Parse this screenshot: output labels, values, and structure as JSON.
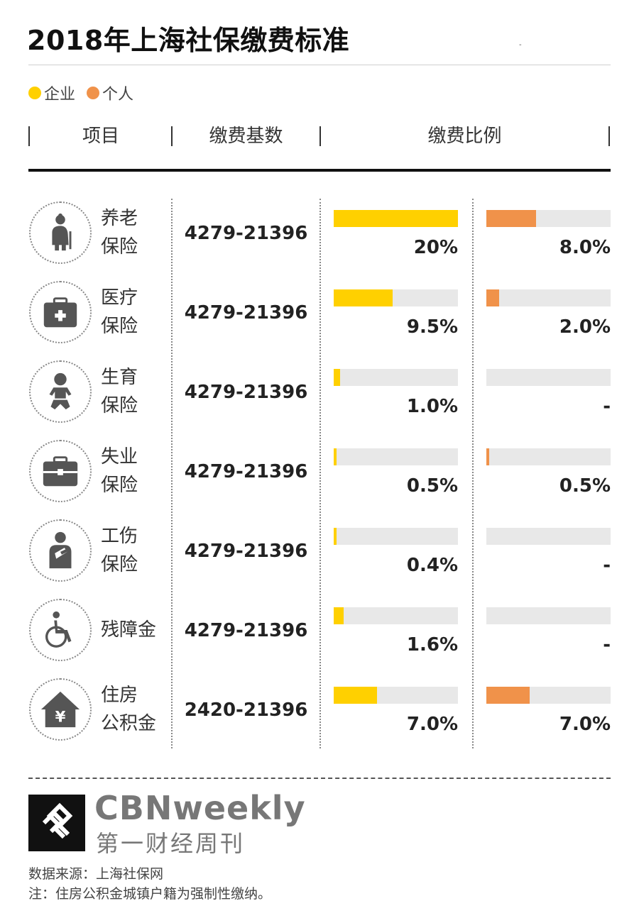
{
  "title": "2018年上海社保缴费标准",
  "top_mark": "-",
  "legend": [
    {
      "label": "企业",
      "color": "#FFD000"
    },
    {
      "label": "个人",
      "color": "#F0924A"
    }
  ],
  "headers": {
    "item": "项目",
    "base": "缴费基数",
    "ratio": "缴费比例"
  },
  "chart_data": {
    "type": "bar",
    "title": "2018年上海社保缴费标准",
    "categories": [
      "养老保险",
      "医疗保险",
      "生育保险",
      "失业保险",
      "工伤保险",
      "残障金",
      "住房公积金"
    ],
    "series": [
      {
        "name": "企业",
        "color": "#FFD000",
        "values": [
          20,
          9.5,
          1.0,
          0.5,
          0.4,
          1.6,
          7.0
        ]
      },
      {
        "name": "个人",
        "color": "#F0924A",
        "values": [
          8.0,
          2.0,
          null,
          0.5,
          null,
          null,
          7.0
        ]
      }
    ],
    "xlim": [
      0,
      20
    ]
  },
  "rows": [
    {
      "label_line1": "养老",
      "label_line2": "保险",
      "icon": "elderly-icon",
      "base": "4279-21396",
      "company_pct": "20%",
      "personal_pct": "8.0%"
    },
    {
      "label_line1": "医疗",
      "label_line2": "保险",
      "icon": "medical-kit-icon",
      "base": "4279-21396",
      "company_pct": "9.5%",
      "personal_pct": "2.0%"
    },
    {
      "label_line1": "生育",
      "label_line2": "保险",
      "icon": "baby-icon",
      "base": "4279-21396",
      "company_pct": "1.0%",
      "personal_pct": "-"
    },
    {
      "label_line1": "失业",
      "label_line2": "保险",
      "icon": "briefcase-icon",
      "base": "4279-21396",
      "company_pct": "0.5%",
      "personal_pct": "0.5%"
    },
    {
      "label_line1": "工伤",
      "label_line2": "保险",
      "icon": "injured-arm-icon",
      "base": "4279-21396",
      "company_pct": "0.4%",
      "personal_pct": "-"
    },
    {
      "label_line1": "残障金",
      "label_line2": "",
      "icon": "wheelchair-icon",
      "base": "4279-21396",
      "company_pct": "1.6%",
      "personal_pct": "-"
    },
    {
      "label_line1": "住房",
      "label_line2": "公积金",
      "icon": "house-yuan-icon",
      "base": "2420-21396",
      "company_pct": "7.0%",
      "personal_pct": "7.0%"
    }
  ],
  "footer": {
    "brand_en": "CBNweekly",
    "brand_cn": "第一财经周刊",
    "source": "数据来源：上海社保网",
    "note": "注：住房公积金城镇户籍为强制性缴纳。"
  }
}
